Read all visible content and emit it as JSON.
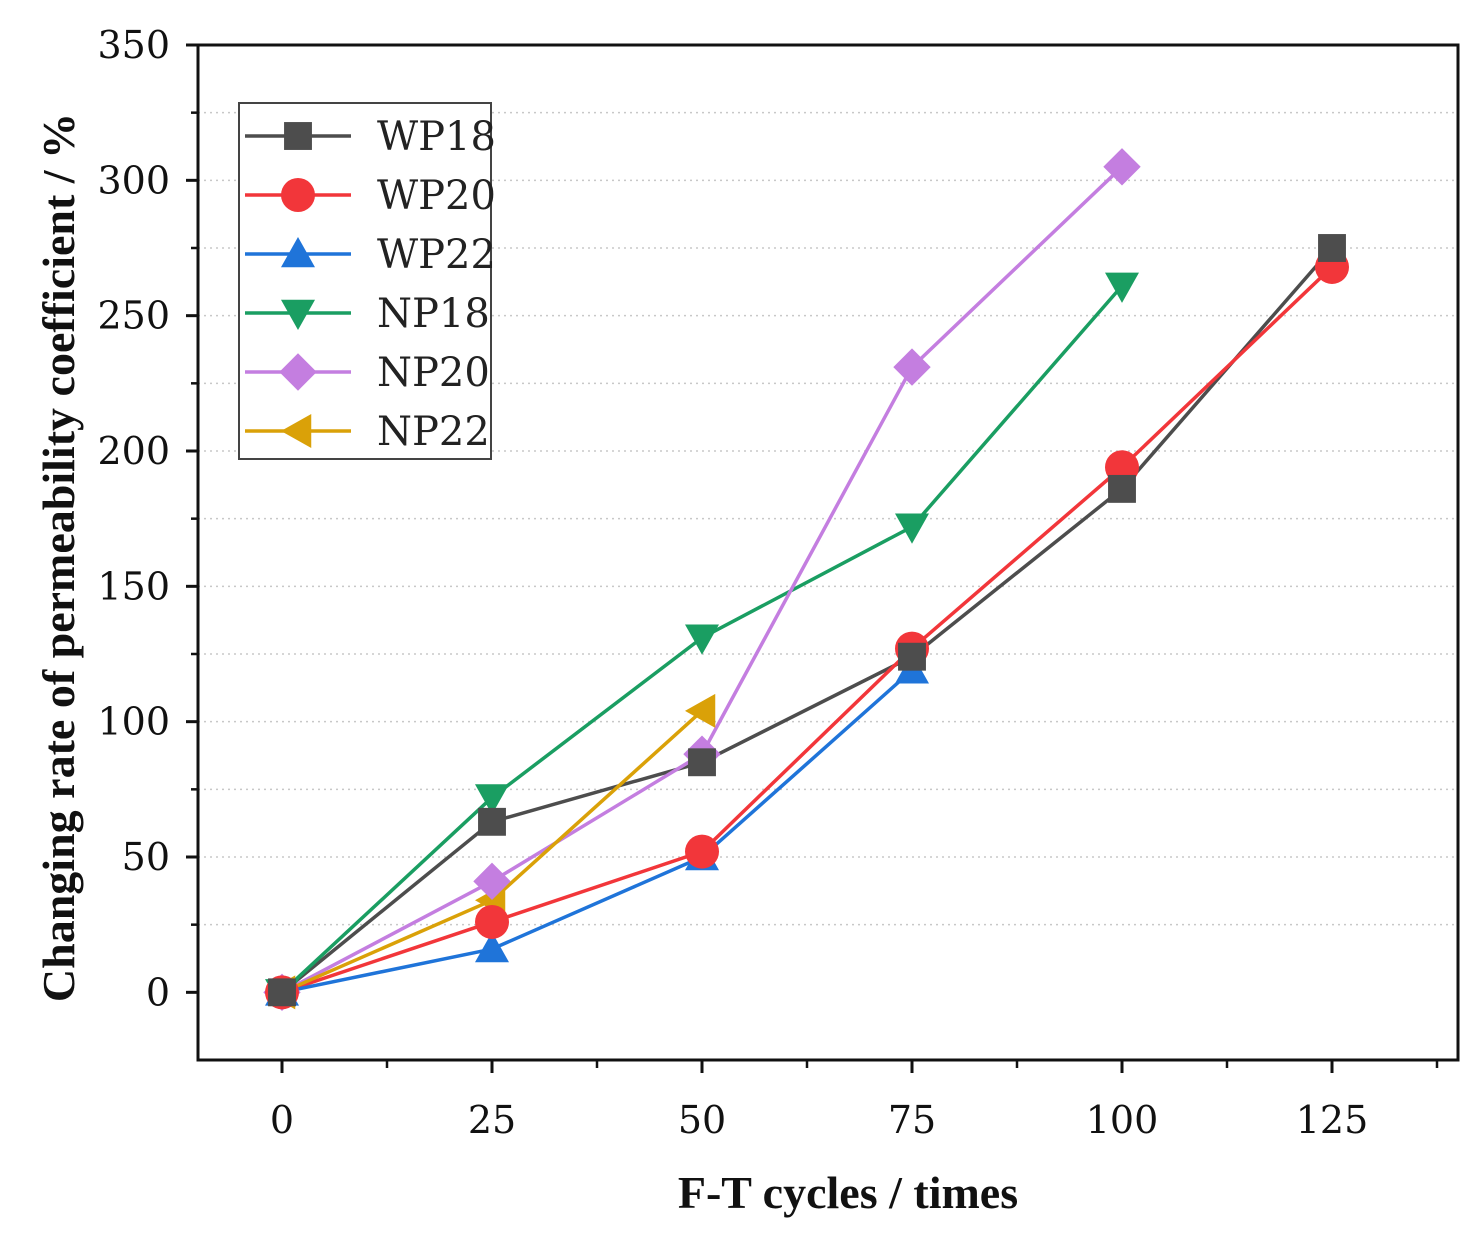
{
  "chart_data": {
    "type": "line",
    "title": "",
    "xlabel": "F-T cycles / times",
    "ylabel": "Changing rate of permeability coefficient / %",
    "xlim": [
      -10,
      140
    ],
    "ylim": [
      -25,
      350
    ],
    "xticks": [
      0,
      25,
      50,
      75,
      100,
      125
    ],
    "yticks": [
      0,
      50,
      100,
      150,
      200,
      250,
      300,
      350
    ],
    "xtick_labels": [
      "0",
      "25",
      "50",
      "75",
      "100",
      "125"
    ],
    "ytick_labels": [
      "0",
      "50",
      "100",
      "150",
      "200",
      "250",
      "300",
      "350"
    ],
    "grid": "horizontal dotted",
    "legend_position": "top-left",
    "series": [
      {
        "name": "WP18",
        "color": "#4d4d4d",
        "marker": "square",
        "x": [
          0,
          25,
          50,
          75,
          100,
          125
        ],
        "y": [
          0,
          63,
          85,
          124,
          186,
          275
        ]
      },
      {
        "name": "WP20",
        "color": "#f2363a",
        "marker": "circle",
        "x": [
          0,
          25,
          50,
          75,
          100,
          125
        ],
        "y": [
          0,
          26,
          52,
          127,
          194,
          268
        ]
      },
      {
        "name": "WP22",
        "color": "#1f74d9",
        "marker": "triangle-up",
        "x": [
          0,
          25,
          50,
          75
        ],
        "y": [
          0,
          16,
          50,
          119
        ]
      },
      {
        "name": "NP18",
        "color": "#1a9e62",
        "marker": "triangle-down",
        "x": [
          0,
          25,
          50,
          75,
          100
        ],
        "y": [
          0,
          72,
          131,
          172,
          261
        ]
      },
      {
        "name": "NP20",
        "color": "#c47ee0",
        "marker": "diamond",
        "x": [
          0,
          25,
          50,
          75,
          100
        ],
        "y": [
          0,
          41,
          88,
          231,
          305
        ]
      },
      {
        "name": "NP22",
        "color": "#daa108",
        "marker": "triangle-left",
        "x": [
          0,
          25,
          50
        ],
        "y": [
          0,
          34,
          104
        ]
      }
    ]
  }
}
